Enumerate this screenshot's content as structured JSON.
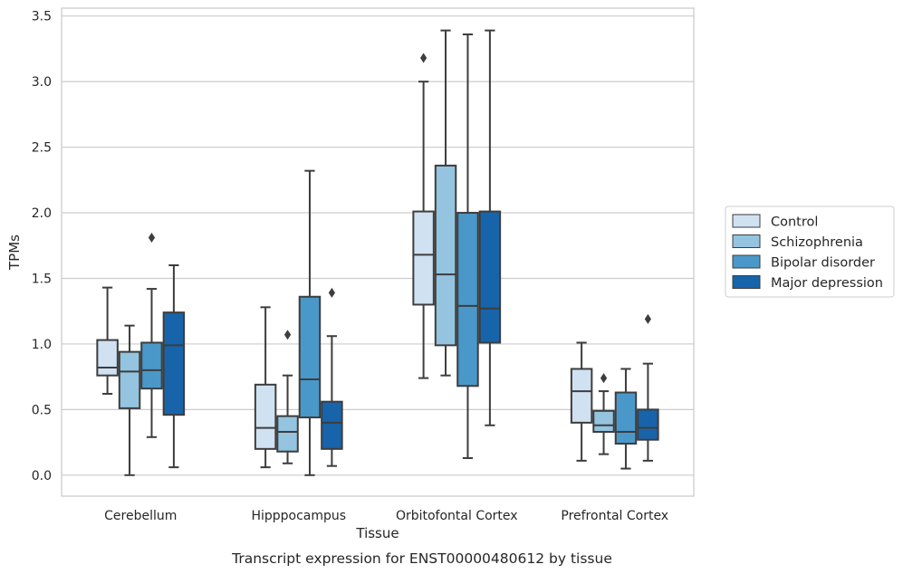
{
  "chart_data": {
    "type": "boxplot",
    "title": "",
    "caption": "Transcript expression for ENST00000480612 by tissue",
    "xlabel": "Tissue",
    "ylabel": "TPMs",
    "ylim": [
      -0.16,
      3.56
    ],
    "yticks": [
      0.0,
      0.5,
      1.0,
      1.5,
      2.0,
      2.5,
      3.0,
      3.5
    ],
    "ytick_labels": [
      "0.0",
      "0.5",
      "1.0",
      "1.5",
      "2.0",
      "2.5",
      "3.0",
      "3.5"
    ],
    "grid": true,
    "legend_position": "right",
    "categories": [
      "Cerebellum",
      "Hipppocampus",
      "Orbitofontal Cortex",
      "Prefrontal Cortex"
    ],
    "series": [
      {
        "name": "Control",
        "color": "#d0e1f2",
        "boxes": [
          {
            "whislo": 0.62,
            "q1": 0.76,
            "med": 0.82,
            "q3": 1.03,
            "whishi": 1.43,
            "fliers": []
          },
          {
            "whislo": 0.06,
            "q1": 0.2,
            "med": 0.36,
            "q3": 0.69,
            "whishi": 1.28,
            "fliers": []
          },
          {
            "whislo": 0.74,
            "q1": 1.3,
            "med": 1.68,
            "q3": 2.01,
            "whishi": 3.0,
            "fliers": [
              3.18
            ]
          },
          {
            "whislo": 0.11,
            "q1": 0.4,
            "med": 0.64,
            "q3": 0.81,
            "whishi": 1.01,
            "fliers": []
          }
        ]
      },
      {
        "name": "Schizophrenia",
        "color": "#94c4df",
        "boxes": [
          {
            "whislo": 0.0,
            "q1": 0.51,
            "med": 0.79,
            "q3": 0.94,
            "whishi": 1.14,
            "fliers": []
          },
          {
            "whislo": 0.09,
            "q1": 0.18,
            "med": 0.33,
            "q3": 0.45,
            "whishi": 0.76,
            "fliers": [
              1.07
            ]
          },
          {
            "whislo": 0.76,
            "q1": 0.99,
            "med": 1.53,
            "q3": 2.36,
            "whishi": 3.39,
            "fliers": []
          },
          {
            "whislo": 0.16,
            "q1": 0.33,
            "med": 0.38,
            "q3": 0.49,
            "whishi": 0.64,
            "fliers": [
              0.74
            ]
          }
        ]
      },
      {
        "name": "Bipolar disorder",
        "color": "#4a98c9",
        "boxes": [
          {
            "whislo": 0.29,
            "q1": 0.66,
            "med": 0.8,
            "q3": 1.01,
            "whishi": 1.42,
            "fliers": [
              1.81
            ]
          },
          {
            "whislo": 0.0,
            "q1": 0.44,
            "med": 0.73,
            "q3": 1.36,
            "whishi": 2.32,
            "fliers": []
          },
          {
            "whislo": 0.13,
            "q1": 0.68,
            "med": 1.29,
            "q3": 2.0,
            "whishi": 3.36,
            "fliers": []
          },
          {
            "whislo": 0.05,
            "q1": 0.24,
            "med": 0.33,
            "q3": 0.63,
            "whishi": 0.81,
            "fliers": []
          }
        ]
      },
      {
        "name": "Major depression",
        "color": "#1764ab",
        "boxes": [
          {
            "whislo": 0.06,
            "q1": 0.46,
            "med": 0.99,
            "q3": 1.24,
            "whishi": 1.6,
            "fliers": []
          },
          {
            "whislo": 0.07,
            "q1": 0.2,
            "med": 0.4,
            "q3": 0.56,
            "whishi": 1.06,
            "fliers": [
              1.39
            ]
          },
          {
            "whislo": 0.38,
            "q1": 1.01,
            "med": 1.27,
            "q3": 2.01,
            "whishi": 3.39,
            "fliers": []
          },
          {
            "whislo": 0.11,
            "q1": 0.27,
            "med": 0.36,
            "q3": 0.5,
            "whishi": 0.85,
            "fliers": [
              1.19
            ]
          }
        ]
      }
    ]
  }
}
